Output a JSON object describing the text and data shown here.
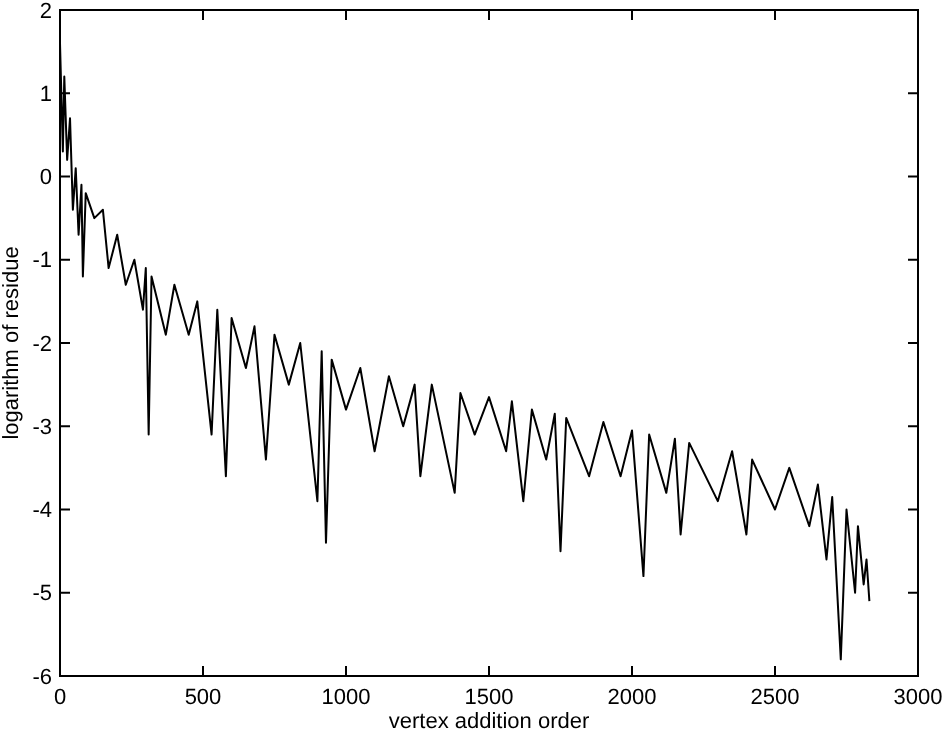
{
  "chart_data": {
    "type": "line",
    "xlabel": "vertex addition order",
    "ylabel": "logarithm of residue",
    "xlim": [
      0,
      3000
    ],
    "xticks": [
      0,
      500,
      1000,
      1500,
      2000,
      2500,
      3000
    ],
    "ylim": [
      -6,
      2
    ],
    "yticks": [
      -6,
      -5,
      -4,
      -3,
      -2,
      -1,
      0,
      1,
      2
    ],
    "grid": false,
    "marker": "none",
    "line_style": "solid",
    "series": [
      {
        "color": "#000000",
        "x": [
          0,
          10,
          15,
          25,
          35,
          45,
          55,
          65,
          75,
          80,
          90,
          120,
          150,
          170,
          200,
          230,
          260,
          290,
          300,
          310,
          320,
          370,
          400,
          450,
          480,
          530,
          550,
          580,
          600,
          650,
          680,
          720,
          750,
          800,
          840,
          900,
          915,
          930,
          950,
          1000,
          1050,
          1100,
          1150,
          1200,
          1240,
          1260,
          1300,
          1380,
          1400,
          1450,
          1500,
          1560,
          1580,
          1620,
          1650,
          1700,
          1730,
          1750,
          1770,
          1850,
          1900,
          1960,
          2000,
          2040,
          2060,
          2120,
          2150,
          2170,
          2200,
          2300,
          2350,
          2400,
          2420,
          2500,
          2550,
          2620,
          2650,
          2680,
          2700,
          2730,
          2750,
          2780,
          2790,
          2810,
          2820,
          2830
        ],
        "values": [
          1.6,
          0.3,
          1.2,
          0.2,
          0.7,
          -0.4,
          0.1,
          -0.7,
          -0.1,
          -1.2,
          -0.2,
          -0.5,
          -0.4,
          -1.1,
          -0.7,
          -1.3,
          -1.0,
          -1.6,
          -1.1,
          -3.1,
          -1.2,
          -1.9,
          -1.3,
          -1.9,
          -1.5,
          -3.1,
          -1.6,
          -3.6,
          -1.7,
          -2.3,
          -1.8,
          -3.4,
          -1.9,
          -2.5,
          -2.0,
          -3.9,
          -2.1,
          -4.4,
          -2.2,
          -2.8,
          -2.3,
          -3.3,
          -2.4,
          -3.0,
          -2.5,
          -3.6,
          -2.5,
          -3.8,
          -2.6,
          -3.1,
          -2.65,
          -3.3,
          -2.7,
          -3.9,
          -2.8,
          -3.4,
          -2.85,
          -4.5,
          -2.9,
          -3.6,
          -2.95,
          -3.6,
          -3.05,
          -4.8,
          -3.1,
          -3.8,
          -3.15,
          -4.3,
          -3.2,
          -3.9,
          -3.3,
          -4.3,
          -3.4,
          -4.0,
          -3.5,
          -4.2,
          -3.7,
          -4.6,
          -3.85,
          -5.8,
          -4.0,
          -5.0,
          -4.2,
          -4.9,
          -4.6,
          -5.1
        ]
      }
    ]
  }
}
